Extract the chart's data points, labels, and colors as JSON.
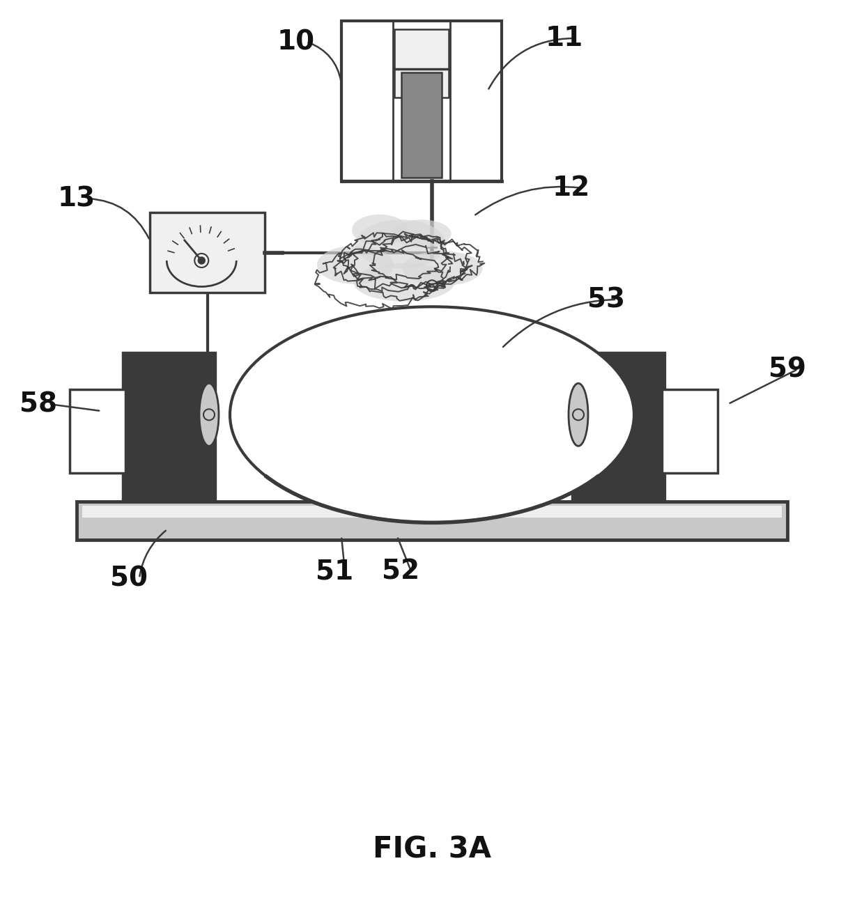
{
  "title": "FIG. 3A",
  "title_fontsize": 30,
  "title_fontweight": "bold",
  "background_color": "#ffffff",
  "dark_gray": "#3a3a3a",
  "mid_gray": "#888888",
  "light_gray": "#c8c8c8",
  "very_light": "#f0f0f0",
  "white": "#ffffff",
  "black": "#111111"
}
